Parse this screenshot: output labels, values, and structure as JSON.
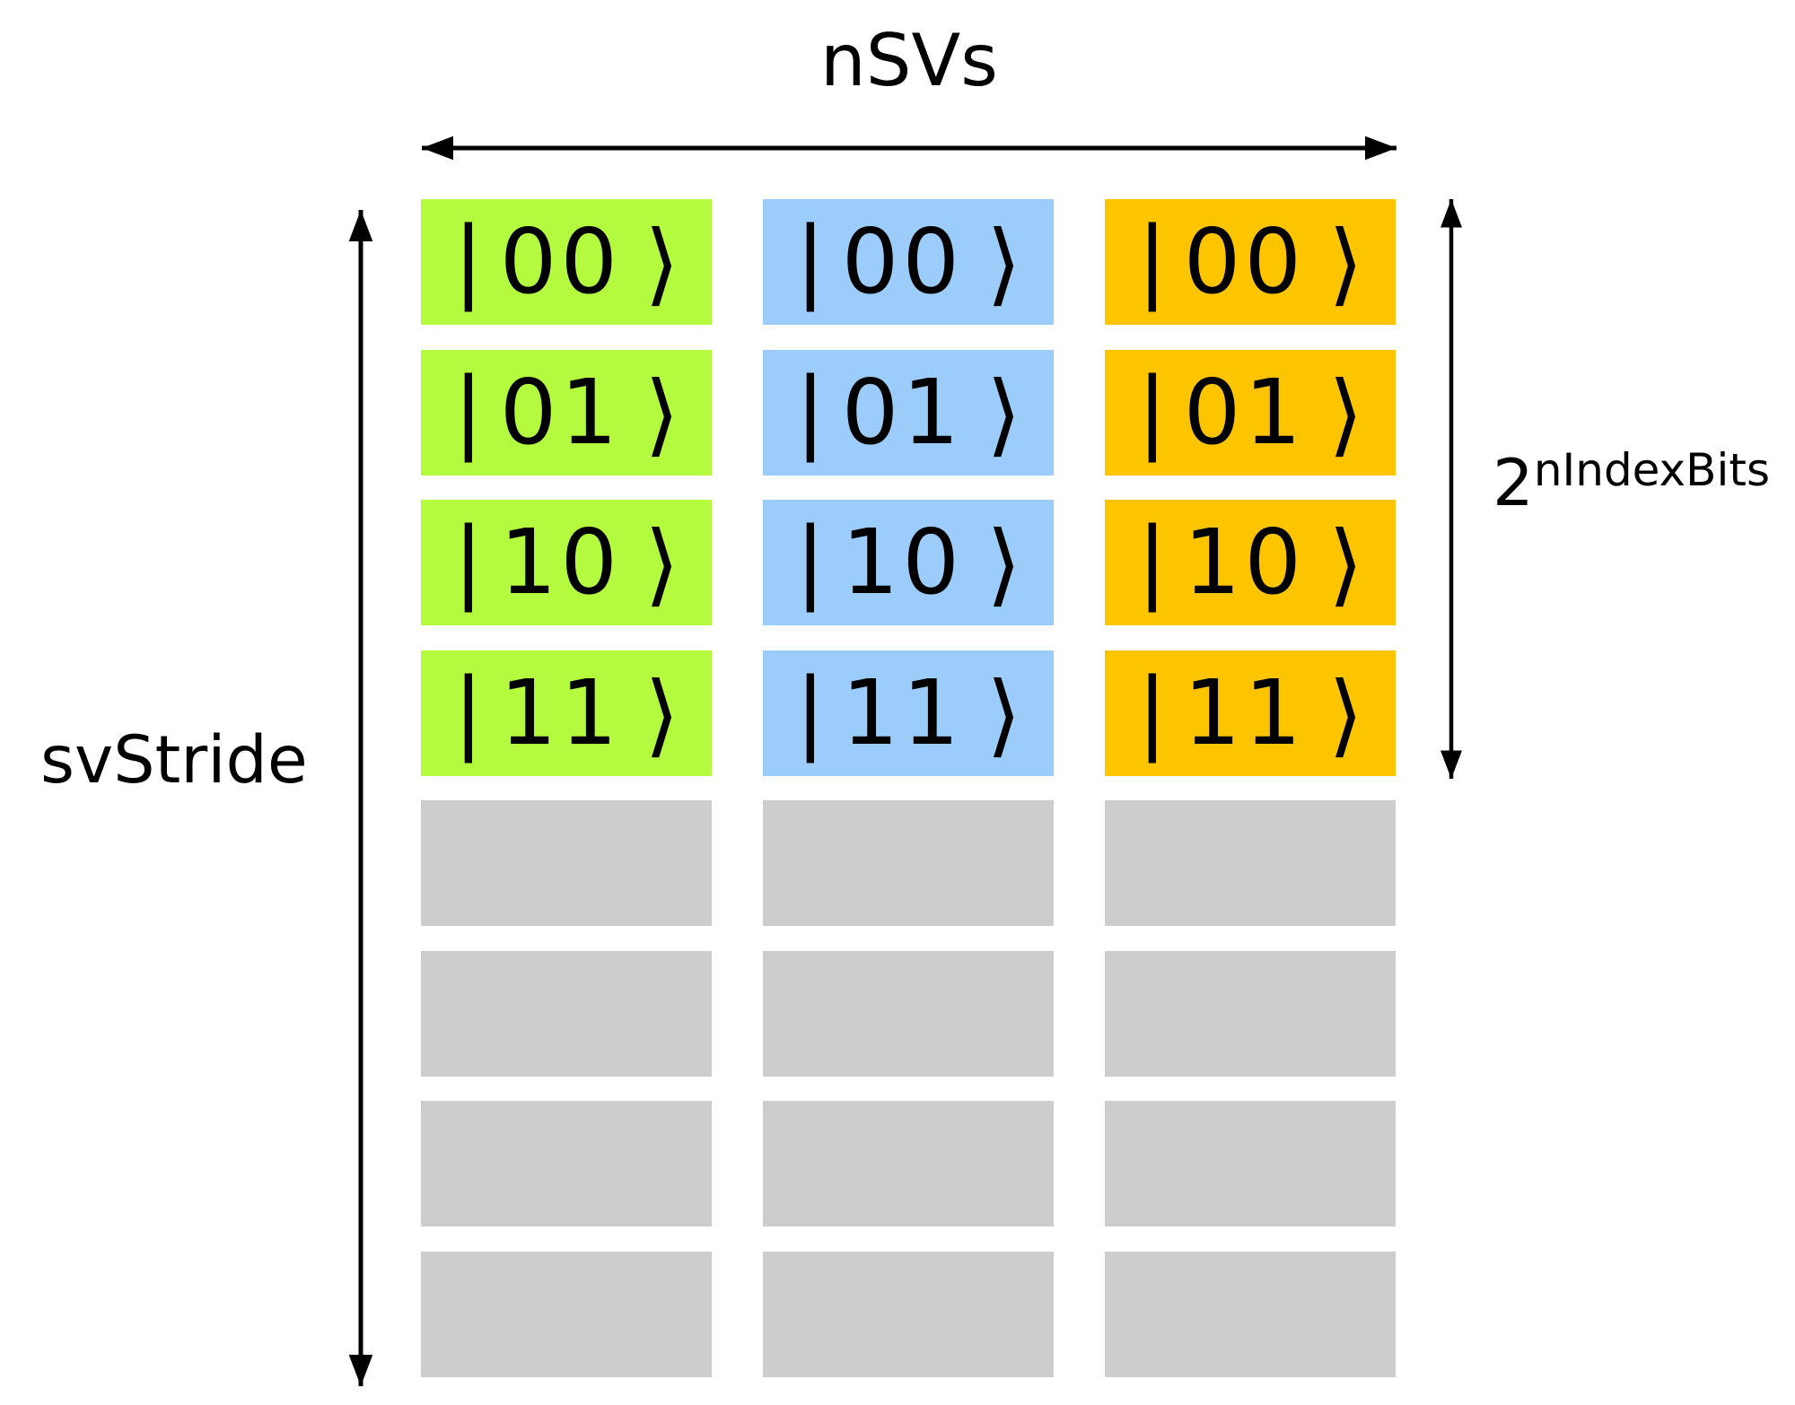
{
  "title": "nSVs",
  "left_label": "svStride",
  "right_label": {
    "base": "2",
    "exponent": "nIndexBits"
  },
  "ket": {
    "open_bar": "|",
    "close_bracket": "⟩"
  },
  "colors": {
    "background": "#FFFFFF",
    "text": "#000000",
    "arrow": "#000000",
    "green": "#B4FA3E",
    "blue": "#9CCDFA",
    "amber": "#FDC500",
    "gray": "#CDCDCD"
  },
  "columns": [
    {
      "id": "sv-column-1",
      "color_key": "green",
      "fill": "#B4FA3E",
      "kets": [
        "00",
        "01",
        "10",
        "11"
      ],
      "empty_cells": 4
    },
    {
      "id": "sv-column-2",
      "color_key": "blue",
      "fill": "#9CCDFA",
      "kets": [
        "00",
        "01",
        "10",
        "11"
      ],
      "empty_cells": 4
    },
    {
      "id": "sv-column-3",
      "color_key": "amber",
      "fill": "#FDC500",
      "kets": [
        "00",
        "01",
        "10",
        "11"
      ],
      "empty_cells": 4
    }
  ],
  "empty_cell_color": "#CDCDCD"
}
